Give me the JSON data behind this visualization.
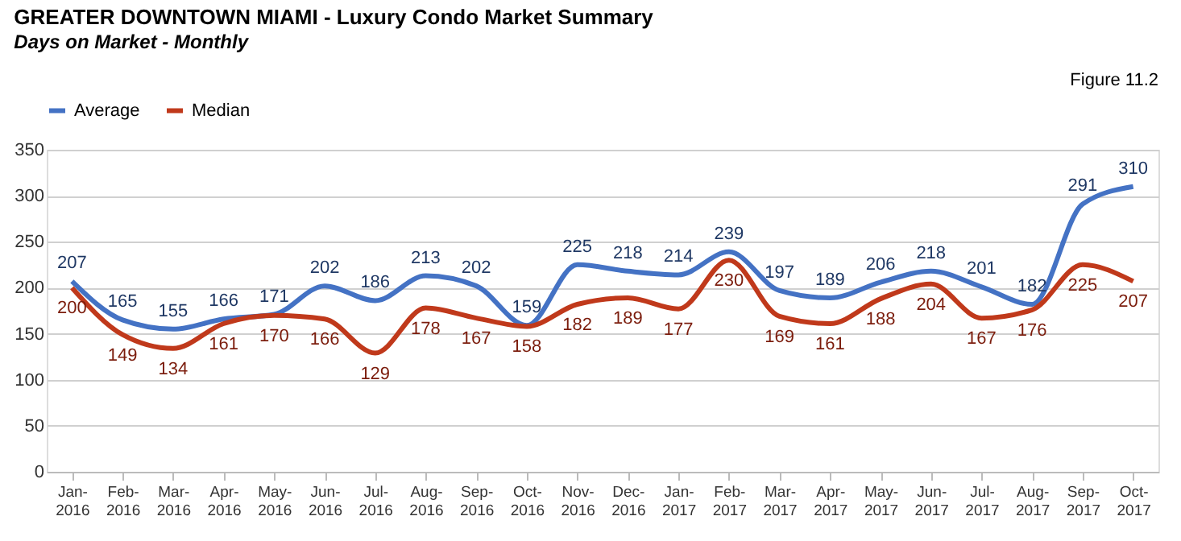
{
  "chart_data": {
    "type": "line",
    "title": "GREATER DOWNTOWN MIAMI - Luxury Condo Market Summary",
    "subtitle": "Days on Market - Monthly",
    "annotations": [
      "Figure 11.2"
    ],
    "categories": [
      "Jan-2016",
      "Feb-2016",
      "Mar-2016",
      "Apr-2016",
      "May-2016",
      "Jun-2016",
      "Jul-2016",
      "Aug-2016",
      "Sep-2016",
      "Oct-2016",
      "Nov-2016",
      "Dec-2016",
      "Jan-2017",
      "Feb-2017",
      "Mar-2017",
      "Apr-2017",
      "May-2017",
      "Jun-2017",
      "Jul-2017",
      "Aug-2017",
      "Sep-2017",
      "Oct-2017"
    ],
    "series": [
      {
        "name": "Average",
        "color": "#4472c4",
        "values": [
          207,
          165,
          155,
          166,
          171,
          202,
          186,
          213,
          202,
          159,
          225,
          218,
          214,
          239,
          197,
          189,
          206,
          218,
          201,
          182,
          291,
          310
        ]
      },
      {
        "name": "Median",
        "color": "#c0391b",
        "values": [
          200,
          149,
          134,
          161,
          170,
          166,
          129,
          178,
          167,
          158,
          182,
          189,
          177,
          230,
          169,
          161,
          188,
          204,
          167,
          176,
          225,
          207
        ]
      }
    ],
    "ylim": [
      0,
      350
    ],
    "yticks": [
      0,
      50,
      100,
      150,
      200,
      250,
      300,
      350
    ],
    "grid": "y",
    "legend": "top",
    "data_labels": true,
    "marker": "none",
    "line_style": "solid"
  }
}
